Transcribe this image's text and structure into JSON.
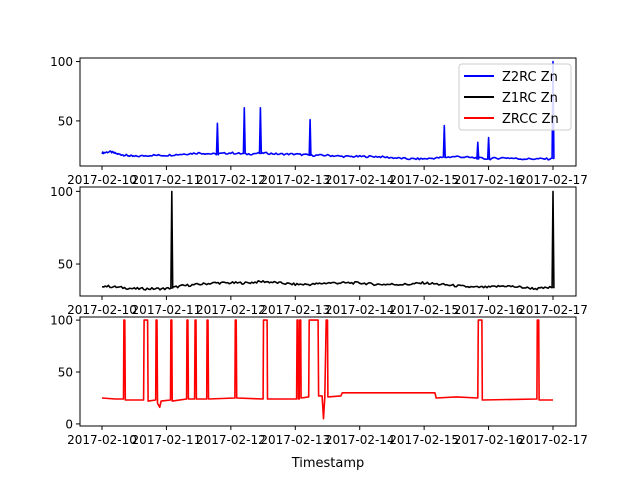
{
  "chart_data": [
    {
      "type": "line",
      "panel": "top",
      "series": [
        {
          "name": "Z2RC Zn",
          "color": "#0000ff"
        },
        {
          "name": "Z1RC Zn",
          "color": "#000000"
        },
        {
          "name": "ZRCC Zn",
          "color": "#ff0000"
        }
      ],
      "plotted_series": "Z2RC Zn",
      "color": "#0000ff",
      "legend": "upper-right",
      "xlim": [
        "2017-02-10",
        "2017-02-17"
      ],
      "ylim": [
        12,
        103
      ],
      "yticks": [
        50,
        100
      ],
      "baseline_points": [
        [
          "2017-02-10 00:00",
          23
        ],
        [
          "2017-02-10 03:00",
          24
        ],
        [
          "2017-02-10 06:00",
          22
        ],
        [
          "2017-02-10 09:00",
          21
        ],
        [
          "2017-02-10 12:00",
          20
        ],
        [
          "2017-02-10 18:00",
          21
        ],
        [
          "2017-02-11 00:00",
          21
        ],
        [
          "2017-02-11 06:00",
          22
        ],
        [
          "2017-02-11 12:00",
          23
        ],
        [
          "2017-02-11 18:00",
          22
        ],
        [
          "2017-02-12 00:00",
          23
        ],
        [
          "2017-02-12 06:00",
          22
        ],
        [
          "2017-02-12 12:00",
          23
        ],
        [
          "2017-02-12 18:00",
          22
        ],
        [
          "2017-02-13 00:00",
          22
        ],
        [
          "2017-02-13 06:00",
          21
        ],
        [
          "2017-02-13 12:00",
          21
        ],
        [
          "2017-02-13 18:00",
          20
        ],
        [
          "2017-02-14 00:00",
          20
        ],
        [
          "2017-02-14 06:00",
          20
        ],
        [
          "2017-02-14 12:00",
          19
        ],
        [
          "2017-02-14 18:00",
          18
        ],
        [
          "2017-02-15 00:00",
          18
        ],
        [
          "2017-02-15 06:00",
          19
        ],
        [
          "2017-02-15 12:00",
          20
        ],
        [
          "2017-02-15 18:00",
          19
        ],
        [
          "2017-02-16 00:00",
          18
        ],
        [
          "2017-02-16 06:00",
          19
        ],
        [
          "2017-02-16 12:00",
          18
        ],
        [
          "2017-02-16 18:00",
          18
        ],
        [
          "2017-02-17 00:00",
          18
        ]
      ],
      "spikes": [
        {
          "x": "2017-02-11 19:00",
          "y": 48
        },
        {
          "x": "2017-02-12 05:00",
          "y": 61
        },
        {
          "x": "2017-02-12 11:00",
          "y": 61
        },
        {
          "x": "2017-02-13 05:30",
          "y": 51
        },
        {
          "x": "2017-02-15 07:30",
          "y": 46
        },
        {
          "x": "2017-02-15 20:00",
          "y": 32
        },
        {
          "x": "2017-02-16 00:00",
          "y": 36
        },
        {
          "x": "2017-02-17 00:00",
          "y": 100
        }
      ]
    },
    {
      "type": "line",
      "panel": "middle",
      "plotted_series": "Z1RC Zn",
      "color": "#000000",
      "xlim": [
        "2017-02-10",
        "2017-02-17"
      ],
      "ylim": [
        28,
        103
      ],
      "yticks": [
        50,
        100
      ],
      "baseline_points": [
        [
          "2017-02-10 00:00",
          35
        ],
        [
          "2017-02-10 06:00",
          34
        ],
        [
          "2017-02-10 12:00",
          33
        ],
        [
          "2017-02-10 18:00",
          33
        ],
        [
          "2017-02-11 00:00",
          33
        ],
        [
          "2017-02-11 06:00",
          35
        ],
        [
          "2017-02-11 12:00",
          36
        ],
        [
          "2017-02-11 18:00",
          37
        ],
        [
          "2017-02-12 00:00",
          37
        ],
        [
          "2017-02-12 06:00",
          37
        ],
        [
          "2017-02-12 12:00",
          38
        ],
        [
          "2017-02-12 18:00",
          37
        ],
        [
          "2017-02-13 00:00",
          36
        ],
        [
          "2017-02-13 06:00",
          36
        ],
        [
          "2017-02-13 12:00",
          37
        ],
        [
          "2017-02-13 18:00",
          37
        ],
        [
          "2017-02-14 00:00",
          37
        ],
        [
          "2017-02-14 06:00",
          36
        ],
        [
          "2017-02-14 12:00",
          36
        ],
        [
          "2017-02-14 18:00",
          36
        ],
        [
          "2017-02-15 00:00",
          37
        ],
        [
          "2017-02-15 06:00",
          36
        ],
        [
          "2017-02-15 12:00",
          35
        ],
        [
          "2017-02-15 18:00",
          34
        ],
        [
          "2017-02-16 00:00",
          34
        ],
        [
          "2017-02-16 06:00",
          35
        ],
        [
          "2017-02-16 12:00",
          34
        ],
        [
          "2017-02-16 18:00",
          33
        ],
        [
          "2017-02-17 00:00",
          34
        ]
      ],
      "spikes": [
        {
          "x": "2017-02-11 02:00",
          "y": 100
        },
        {
          "x": "2017-02-17 00:00",
          "y": 100
        }
      ]
    },
    {
      "type": "line",
      "panel": "bottom",
      "plotted_series": "ZRCC Zn",
      "color": "#ff0000",
      "xlim": [
        "2017-02-10",
        "2017-02-17"
      ],
      "ylim": [
        -2,
        103
      ],
      "yticks": [
        0,
        50,
        100
      ],
      "xticks": [
        "2017-02-10",
        "2017-02-11",
        "2017-02-12",
        "2017-02-13",
        "2017-02-14",
        "2017-02-15",
        "2017-02-16",
        "2017-02-17"
      ],
      "xlabel": "Timestamp",
      "points": [
        [
          "2017-02-10 00:00",
          25
        ],
        [
          "2017-02-10 05:00",
          24
        ],
        [
          "2017-02-10 08:00",
          24
        ],
        [
          "2017-02-10 08:10",
          100
        ],
        [
          "2017-02-10 08:30",
          100
        ],
        [
          "2017-02-10 08:40",
          23
        ],
        [
          "2017-02-10 15:30",
          23
        ],
        [
          "2017-02-10 15:40",
          100
        ],
        [
          "2017-02-10 17:00",
          100
        ],
        [
          "2017-02-10 17:10",
          22
        ],
        [
          "2017-02-10 20:00",
          23
        ],
        [
          "2017-02-10 20:10",
          100
        ],
        [
          "2017-02-10 20:30",
          100
        ],
        [
          "2017-02-10 20:40",
          20
        ],
        [
          "2017-02-10 21:30",
          16
        ],
        [
          "2017-02-10 22:00",
          22
        ],
        [
          "2017-02-11 01:30",
          23
        ],
        [
          "2017-02-11 01:40",
          100
        ],
        [
          "2017-02-11 02:00",
          100
        ],
        [
          "2017-02-11 02:10",
          22
        ],
        [
          "2017-02-11 07:30",
          24
        ],
        [
          "2017-02-11 07:40",
          100
        ],
        [
          "2017-02-11 08:00",
          100
        ],
        [
          "2017-02-11 08:10",
          24
        ],
        [
          "2017-02-11 10:30",
          24
        ],
        [
          "2017-02-11 10:40",
          100
        ],
        [
          "2017-02-11 11:00",
          100
        ],
        [
          "2017-02-11 11:10",
          24
        ],
        [
          "2017-02-11 15:00",
          24
        ],
        [
          "2017-02-11 15:10",
          100
        ],
        [
          "2017-02-11 15:30",
          100
        ],
        [
          "2017-02-11 15:40",
          24
        ],
        [
          "2017-02-12 01:30",
          25
        ],
        [
          "2017-02-12 01:40",
          100
        ],
        [
          "2017-02-12 02:00",
          100
        ],
        [
          "2017-02-12 02:10",
          25
        ],
        [
          "2017-02-12 12:00",
          24
        ],
        [
          "2017-02-12 12:10",
          100
        ],
        [
          "2017-02-12 13:30",
          100
        ],
        [
          "2017-02-12 13:40",
          24
        ],
        [
          "2017-02-13 00:30",
          24
        ],
        [
          "2017-02-13 00:40",
          100
        ],
        [
          "2017-02-13 01:00",
          100
        ],
        [
          "2017-02-13 01:10",
          24
        ],
        [
          "2017-02-13 01:30",
          24
        ],
        [
          "2017-02-13 01:40",
          100
        ],
        [
          "2017-02-13 02:00",
          100
        ],
        [
          "2017-02-13 02:10",
          25
        ],
        [
          "2017-02-13 05:00",
          26
        ],
        [
          "2017-02-13 05:10",
          100
        ],
        [
          "2017-02-13 08:30",
          100
        ],
        [
          "2017-02-13 08:40",
          27
        ],
        [
          "2017-02-13 10:00",
          27
        ],
        [
          "2017-02-13 10:30",
          5
        ],
        [
          "2017-02-13 11:00",
          26
        ],
        [
          "2017-02-13 11:30",
          100
        ],
        [
          "2017-02-13 12:00",
          100
        ],
        [
          "2017-02-13 12:10",
          26
        ],
        [
          "2017-02-13 17:00",
          27
        ],
        [
          "2017-02-13 17:30",
          30
        ],
        [
          "2017-02-15 04:00",
          30
        ],
        [
          "2017-02-15 04:30",
          25
        ],
        [
          "2017-02-15 12:00",
          26
        ],
        [
          "2017-02-15 20:00",
          25
        ],
        [
          "2017-02-15 20:10",
          100
        ],
        [
          "2017-02-15 21:30",
          100
        ],
        [
          "2017-02-15 21:40",
          23
        ],
        [
          "2017-02-16 18:00",
          24
        ],
        [
          "2017-02-16 18:10",
          100
        ],
        [
          "2017-02-16 18:40",
          100
        ],
        [
          "2017-02-16 18:50",
          23
        ],
        [
          "2017-02-17 00:00",
          23
        ]
      ]
    }
  ]
}
